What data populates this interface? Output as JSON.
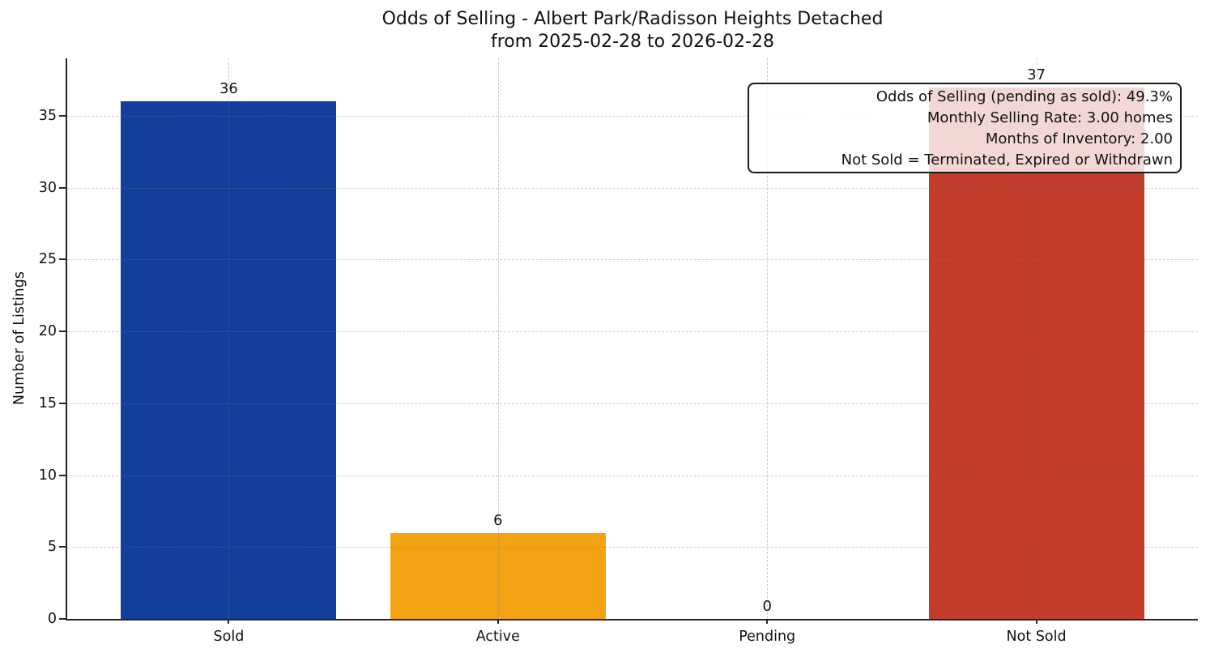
{
  "chart_data": {
    "type": "bar",
    "title": "Odds of Selling - Albert Park/Radisson Heights Detached",
    "subtitle": "from 2025-02-28 to 2026-02-28",
    "categories": [
      "Sold",
      "Active",
      "Pending",
      "Not Sold"
    ],
    "values": [
      36,
      6,
      0,
      37
    ],
    "bar_value_labels": [
      "36",
      "6",
      "0",
      "37"
    ],
    "bar_colors": [
      "#123f9b",
      "#f3a311",
      null,
      "#c23b2b"
    ],
    "xlabel": "",
    "ylabel": "Number of Listings",
    "yticks": [
      0,
      5,
      10,
      15,
      20,
      25,
      30,
      35
    ],
    "ylim": [
      0,
      39
    ],
    "grid": "dashed horizontal and vertical gridlines",
    "legend_position": "none",
    "annotation": {
      "position": "top-right",
      "text_align": "right",
      "lines": [
        "Odds of Selling (pending as sold): 49.3%",
        "Monthly Selling Rate: 3.00 homes",
        "Months of Inventory: 2.00",
        "Not Sold = Terminated, Expired or Withdrawn"
      ]
    },
    "colors": {
      "axis": "#262626",
      "text": "#111111",
      "grid": "#cccccc",
      "background": "#ffffff",
      "annotation_background": "rgba(255,255,255,0.8)"
    }
  }
}
